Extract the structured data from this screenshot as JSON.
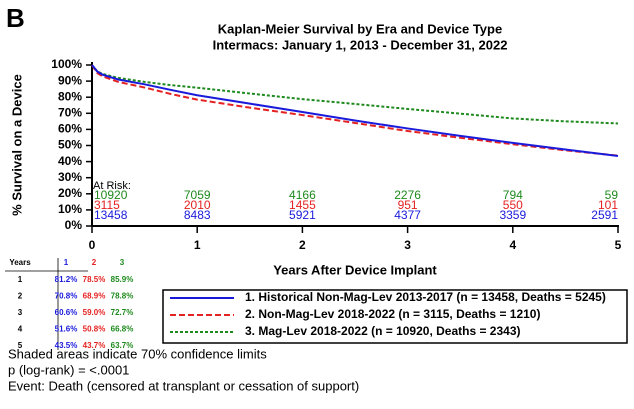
{
  "panel_label": "B",
  "chart_data": {
    "type": "line",
    "title": "Kaplan-Meier Survival by Era and Device Type",
    "subtitle": "Intermacs: January 1, 2013 - December 31, 2022",
    "x_label": "Years After Device Implant",
    "y_label": "% Survival on a Device",
    "xlim": [
      0,
      5
    ],
    "xticks": [
      0,
      1,
      2,
      3,
      4,
      5
    ],
    "ylim": [
      0,
      100
    ],
    "yticks": [
      {
        "value": 0,
        "label": "0%"
      },
      {
        "value": 10,
        "label": "10%"
      },
      {
        "value": 20,
        "label": "20%"
      },
      {
        "value": 30,
        "label": "30%"
      },
      {
        "value": 40,
        "label": "40%"
      },
      {
        "value": 50,
        "label": "50%"
      },
      {
        "value": 60,
        "label": "60%"
      },
      {
        "value": 70,
        "label": "70%"
      },
      {
        "value": 80,
        "label": "80%"
      },
      {
        "value": 90,
        "label": "90%"
      },
      {
        "value": 100,
        "label": "100%"
      }
    ],
    "x": [
      0,
      0.05,
      0.1,
      0.25,
      0.5,
      0.75,
      1,
      1.5,
      2,
      2.5,
      3,
      3.5,
      4,
      4.5,
      5
    ],
    "series": [
      {
        "name": "1. Historical Non-Mag-Lev 2013-2017 (n = 13458, Deaths = 5245)",
        "color": "#1a1adb",
        "dash": "solid",
        "values": [
          100,
          96,
          94,
          91,
          88,
          84.5,
          81.2,
          76,
          70.8,
          65.5,
          60.6,
          56,
          51.6,
          47.5,
          43.5
        ]
      },
      {
        "name": "2. Non-Mag-Lev 2018-2022 (n = 3115, Deaths = 1210)",
        "color": "#e52222",
        "dash": "dashed",
        "values": [
          100,
          95,
          93,
          89.5,
          86,
          82,
          78.5,
          73.5,
          68.9,
          64,
          59.0,
          54.8,
          50.8,
          47,
          43.7
        ]
      },
      {
        "name": "3. Mag-Lev 2018-2022 (n = 10920, Deaths = 2343)",
        "color": "#1e8a1e",
        "dash": "dotted",
        "values": [
          100,
          96,
          94.5,
          92,
          89.5,
          87.5,
          85.9,
          82.3,
          78.8,
          75.8,
          72.7,
          69.8,
          66.8,
          65,
          63.7
        ]
      }
    ],
    "at_risk": {
      "label": "At Risk:",
      "rows": [
        {
          "color": "#1e8a1e",
          "values": [
            10920,
            7059,
            4166,
            2276,
            794,
            59
          ]
        },
        {
          "color": "#e52222",
          "values": [
            3115,
            2010,
            1455,
            951,
            550,
            101
          ]
        },
        {
          "color": "#1a1adb",
          "values": [
            13458,
            8483,
            5921,
            4377,
            3359,
            2591
          ]
        }
      ]
    }
  },
  "survival_table": {
    "header": [
      "Years",
      "1",
      "2",
      "3"
    ],
    "column_colors": [
      "#000000",
      "#1a1adb",
      "#e52222",
      "#1e8a1e"
    ],
    "rows": [
      [
        "1",
        "81.2%",
        "78.5%",
        "85.9%"
      ],
      [
        "2",
        "70.8%",
        "68.9%",
        "78.8%"
      ],
      [
        "3",
        "60.6%",
        "59.0%",
        "72.7%"
      ],
      [
        "4",
        "51.6%",
        "50.8%",
        "66.8%"
      ],
      [
        "5",
        "43.5%",
        "43.7%",
        "63.7%"
      ]
    ]
  },
  "footnotes": [
    "Shaded areas indicate 70% confidence limits",
    "p (log-rank) = <.0001",
    "Event: Death (censored at transplant or cessation of support)"
  ]
}
